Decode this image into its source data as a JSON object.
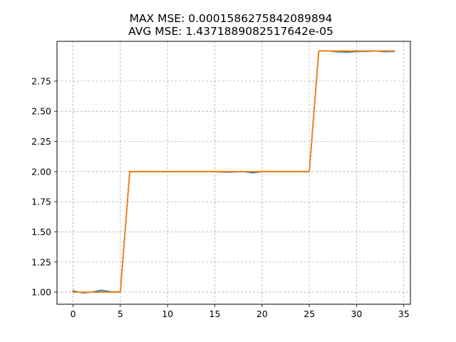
{
  "chart_data": {
    "type": "line",
    "title": "MAX MSE: 0.0001586275842089894",
    "subtitle": "AVG MSE: 1.4371889082517642e-05",
    "xlabel": "",
    "ylabel": "",
    "xlim": [
      -1.7,
      35.7
    ],
    "ylim": [
      0.9,
      3.08
    ],
    "x_ticks": [
      0,
      5,
      10,
      15,
      20,
      25,
      30,
      35
    ],
    "y_ticks": [
      1.0,
      1.25,
      1.5,
      1.75,
      2.0,
      2.25,
      2.5,
      2.75
    ],
    "x_tick_labels": [
      "0",
      "5",
      "10",
      "15",
      "20",
      "25",
      "30",
      "35"
    ],
    "y_tick_labels": [
      "1.00",
      "1.25",
      "1.50",
      "1.75",
      "2.00",
      "2.25",
      "2.50",
      "2.75"
    ],
    "grid": true,
    "legend": "none",
    "x": [
      0,
      1,
      2,
      3,
      4,
      5,
      6,
      7,
      8,
      9,
      10,
      11,
      12,
      13,
      14,
      15,
      16,
      17,
      18,
      19,
      20,
      21,
      22,
      23,
      24,
      25,
      26,
      27,
      28,
      29,
      30,
      31,
      32,
      33,
      34
    ],
    "series": [
      {
        "color": "#1f77b4",
        "values": [
          1.01,
          0.995,
          1.0,
          1.015,
          1.003,
          1.002,
          2.0,
          2.0,
          2.0,
          2.0,
          1.998,
          2.0,
          2.0,
          2.0,
          2.0,
          2.0,
          1.995,
          1.997,
          2.0,
          1.99,
          2.0,
          2.0,
          2.0,
          2.0,
          2.0,
          2.0,
          3.0,
          3.0,
          2.993,
          2.991,
          2.995,
          2.996,
          3.0,
          2.994,
          2.996
        ]
      },
      {
        "color": "#ff7f0e",
        "values": [
          1.0,
          1.0,
          1.0,
          1.0,
          1.0,
          1.0,
          2.0,
          2.0,
          2.0,
          2.0,
          2.0,
          2.0,
          2.0,
          2.0,
          2.0,
          2.0,
          2.0,
          2.0,
          2.0,
          2.0,
          2.0,
          2.0,
          2.0,
          2.0,
          2.0,
          2.0,
          3.0,
          3.0,
          3.0,
          3.0,
          3.0,
          3.0,
          3.0,
          3.0,
          3.0
        ]
      }
    ]
  }
}
